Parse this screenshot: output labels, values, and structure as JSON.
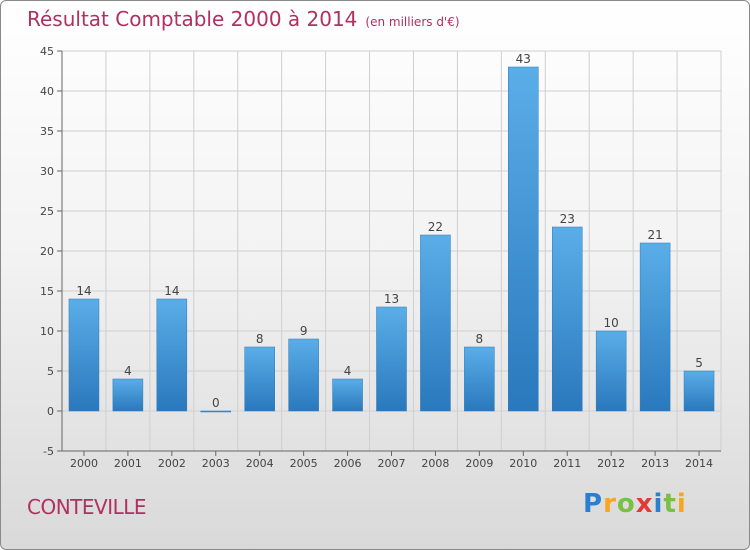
{
  "header": {
    "title": "Résultat Comptable 2000 à 2014",
    "subtitle": "(en milliers d'€)"
  },
  "footer": {
    "place": "CONTEVILLE",
    "logo": {
      "letters": [
        "P",
        "r",
        "o",
        "x",
        "i",
        "t",
        "i"
      ],
      "colors": [
        "#2a7fd0",
        "#f5a623",
        "#7ac143",
        "#e53935",
        "#2a7fd0",
        "#7ac143",
        "#f5a623"
      ]
    }
  },
  "chart_data": {
    "type": "bar",
    "title": "Résultat Comptable 2000 à 2014",
    "subtitle": "(en milliers d'€)",
    "categories": [
      "2000",
      "2001",
      "2002",
      "2003",
      "2004",
      "2005",
      "2006",
      "2007",
      "2008",
      "2009",
      "2010",
      "2011",
      "2012",
      "2013",
      "2014"
    ],
    "values": [
      14,
      4,
      14,
      0,
      8,
      9,
      4,
      13,
      22,
      8,
      43,
      23,
      10,
      21,
      5
    ],
    "data_labels": [
      "14",
      "4",
      "14",
      "0",
      "8",
      "9",
      "4",
      "13",
      "22",
      "8",
      "43",
      "23",
      "10",
      "21",
      "5"
    ],
    "xlabel": "",
    "ylabel": "",
    "ylim": [
      -5,
      45
    ],
    "yticks": [
      -5,
      0,
      5,
      10,
      15,
      20,
      25,
      30,
      35,
      40,
      45
    ],
    "grid": true,
    "bar_color": "#3d95d8",
    "text_color": "#b03060"
  }
}
